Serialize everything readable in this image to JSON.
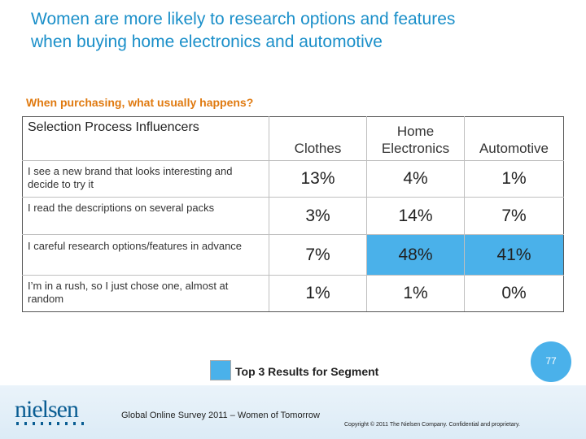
{
  "slide": {
    "title_line1": "Women are more likely to research options and features",
    "title_line2": "when buying home electronics and automotive",
    "subtitle": "When purchasing, what usually happens?",
    "page_number": "77"
  },
  "colors": {
    "title": "#1a8fc9",
    "subtitle": "#e07a10",
    "highlight": "#4ab1ea",
    "logo": "#0a5d93"
  },
  "table": {
    "header_label": "Selection Process Influencers",
    "columns": [
      {
        "line1": "",
        "line2": "Clothes"
      },
      {
        "line1": "Home",
        "line2": "Electronics"
      },
      {
        "line1": "",
        "line2": "Automotive"
      }
    ],
    "rows": [
      {
        "label": "I see a new brand that looks interesting and decide to try it",
        "values": [
          "13%",
          "4%",
          "1%"
        ],
        "highlight": [
          false,
          false,
          false
        ]
      },
      {
        "label": "I read the descriptions on several packs",
        "values": [
          "3%",
          "14%",
          "7%"
        ],
        "highlight": [
          false,
          false,
          false
        ]
      },
      {
        "label": "I careful research options/features in advance",
        "values": [
          "7%",
          "48%",
          "41%"
        ],
        "highlight": [
          false,
          true,
          true
        ]
      },
      {
        "label": "I’m in a rush, so I just chose one, almost at random",
        "values": [
          "1%",
          "1%",
          "0%"
        ],
        "highlight": [
          false,
          false,
          false
        ]
      }
    ]
  },
  "legend": {
    "label": "Top 3 Results for Segment"
  },
  "footer": {
    "logo_text": "nielsen",
    "survey": "Global Online Survey 2011 – Women of Tomorrow",
    "copyright": "Copyright © 2011 The Nielsen Company. Confidential and proprietary."
  }
}
